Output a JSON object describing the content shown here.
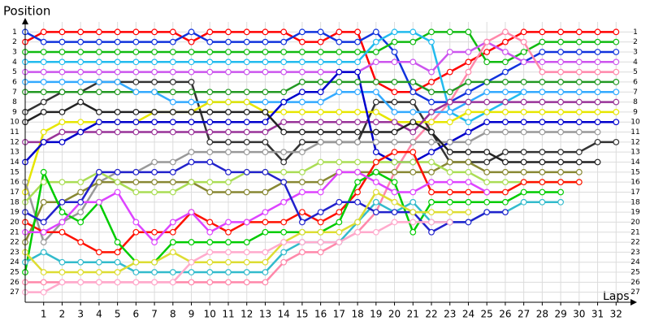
{
  "chart_data": {
    "type": "line",
    "y_title": "Position",
    "x_title": "Laps",
    "x": [
      0,
      1,
      2,
      3,
      4,
      5,
      6,
      7,
      8,
      9,
      10,
      11,
      12,
      13,
      14,
      15,
      16,
      17,
      18,
      19,
      20,
      21,
      22,
      23,
      24,
      25,
      26,
      27,
      28,
      29,
      30,
      31,
      32
    ],
    "xlim": [
      0,
      33
    ],
    "xticks": [
      1,
      2,
      3,
      4,
      5,
      6,
      7,
      8,
      9,
      10,
      11,
      12,
      13,
      14,
      15,
      16,
      17,
      18,
      19,
      20,
      21,
      22,
      23,
      24,
      25,
      26,
      27,
      28,
      29,
      30,
      31,
      32
    ],
    "ylim": [
      0,
      28
    ],
    "yticks": [
      1,
      2,
      3,
      4,
      5,
      6,
      7,
      8,
      9,
      10,
      11,
      12,
      13,
      14,
      15,
      16,
      17,
      18,
      19,
      20,
      21,
      22,
      23,
      24,
      25,
      26,
      27
    ],
    "y_inverted": true,
    "grid": true,
    "series": [
      {
        "color": "#ff0000",
        "values": [
          2,
          1,
          1,
          1,
          1,
          1,
          1,
          1,
          1,
          2,
          1,
          1,
          1,
          1,
          1,
          2,
          2,
          1,
          1,
          6,
          7,
          7,
          6,
          5,
          4,
          3,
          2,
          1,
          1,
          1,
          1,
          1,
          1
        ]
      },
      {
        "color": "#1133dd",
        "values": [
          1,
          2,
          2,
          2,
          2,
          2,
          2,
          2,
          2,
          1,
          2,
          2,
          2,
          2,
          2,
          1,
          1,
          2,
          2,
          1,
          3,
          7,
          8,
          8,
          7,
          6,
          5,
          4,
          3,
          3,
          3,
          3,
          3
        ]
      },
      {
        "color": "#11bb11",
        "values": [
          3,
          3,
          3,
          3,
          3,
          3,
          3,
          3,
          3,
          3,
          3,
          3,
          3,
          3,
          3,
          3,
          3,
          3,
          3,
          3,
          2,
          2,
          1,
          1,
          1,
          4,
          4,
          3,
          2,
          2,
          2,
          2,
          2
        ]
      },
      {
        "color": "#22bbee",
        "values": [
          4,
          4,
          4,
          4,
          4,
          4,
          4,
          4,
          4,
          4,
          4,
          4,
          4,
          4,
          4,
          4,
          4,
          4,
          4,
          2,
          1,
          1,
          2,
          9,
          10,
          9,
          8,
          7,
          7,
          7,
          7,
          7,
          7
        ]
      },
      {
        "color": "#cc55ee",
        "values": [
          5,
          5,
          5,
          5,
          5,
          5,
          5,
          5,
          5,
          5,
          5,
          5,
          5,
          5,
          5,
          5,
          5,
          5,
          5,
          4,
          4,
          4,
          5,
          3,
          3,
          2,
          3,
          4,
          4,
          4,
          4,
          4,
          4
        ]
      },
      {
        "color": "#ff88aa",
        "values": [
          26,
          26,
          26,
          26,
          26,
          26,
          26,
          26,
          26,
          26,
          26,
          26,
          26,
          26,
          24,
          23,
          23,
          22,
          21,
          19,
          15,
          12,
          10,
          8,
          5,
          2,
          1,
          2,
          5,
          5,
          5,
          5,
          5
        ]
      },
      {
        "color": "#333333",
        "values": [
          9,
          8,
          7,
          7,
          6,
          6,
          6,
          6,
          6,
          6,
          12,
          12,
          12,
          12,
          14,
          12,
          12,
          12,
          12,
          8,
          8,
          8,
          11,
          14,
          14,
          14,
          13,
          13,
          13,
          13,
          13,
          12,
          12
        ]
      },
      {
        "color": "#229922",
        "values": [
          7,
          7,
          7,
          7,
          7,
          7,
          7,
          7,
          7,
          7,
          7,
          7,
          7,
          7,
          7,
          6,
          6,
          6,
          6,
          6,
          6,
          6,
          7,
          7,
          6,
          6,
          6,
          6,
          6,
          6,
          6,
          6,
          6
        ]
      },
      {
        "color": "#33aaff",
        "values": [
          6,
          6,
          6,
          6,
          6,
          6,
          7,
          7,
          8,
          8,
          8,
          8,
          8,
          8,
          8,
          8,
          8,
          7,
          7,
          7,
          9,
          9,
          9,
          9,
          8,
          7,
          7,
          7,
          7,
          7,
          7,
          7,
          7
        ]
      },
      {
        "color": "#e6e600",
        "values": [
          17,
          11,
          10,
          10,
          10,
          10,
          10,
          9,
          9,
          9,
          8,
          8,
          8,
          9,
          9,
          9,
          9,
          9,
          9,
          9,
          10,
          10,
          10,
          10,
          9,
          9,
          9,
          9,
          9,
          9,
          9,
          9,
          9
        ]
      },
      {
        "color": "#993399",
        "values": [
          12,
          12,
          11,
          11,
          11,
          11,
          11,
          11,
          11,
          11,
          11,
          11,
          11,
          11,
          10,
          10,
          10,
          10,
          10,
          10,
          10,
          11,
          9,
          8,
          8,
          8,
          8,
          8,
          8,
          8,
          8,
          8,
          8
        ]
      },
      {
        "color": "#0000cc",
        "values": [
          14,
          12,
          12,
          11,
          10,
          10,
          10,
          10,
          10,
          10,
          10,
          10,
          10,
          10,
          8,
          7,
          7,
          5,
          5,
          13,
          14,
          14,
          13,
          12,
          11,
          10,
          10,
          10,
          10,
          10,
          10,
          10,
          10
        ]
      },
      {
        "color": "#999999",
        "values": [
          16,
          22,
          20,
          19,
          16,
          15,
          15,
          14,
          14,
          13,
          13,
          13,
          13,
          13,
          13,
          13,
          12,
          12,
          12,
          12,
          12,
          12,
          12,
          12,
          12,
          11,
          11,
          11,
          11,
          11,
          11,
          11,
          null
        ]
      },
      {
        "color": "#888833",
        "values": [
          22,
          18,
          18,
          17,
          16,
          16,
          16,
          16,
          16,
          16,
          17,
          17,
          17,
          17,
          16,
          16,
          16,
          15,
          15,
          15,
          15,
          15,
          15,
          14,
          14,
          15,
          15,
          15,
          15,
          15,
          15,
          null,
          null
        ]
      },
      {
        "color": "#aadd55",
        "values": [
          18,
          16,
          16,
          16,
          15,
          16,
          17,
          17,
          17,
          16,
          16,
          16,
          15,
          15,
          15,
          15,
          14,
          14,
          14,
          14,
          14,
          14,
          14,
          15,
          15,
          16,
          16,
          16,
          16,
          16,
          16,
          null,
          null
        ]
      },
      {
        "color": "#ff1100",
        "values": [
          20,
          21,
          21,
          22,
          23,
          23,
          21,
          21,
          21,
          19,
          20,
          21,
          20,
          20,
          20,
          19,
          20,
          19,
          17,
          14,
          13,
          13,
          17,
          17,
          17,
          17,
          17,
          16,
          16,
          16,
          16,
          null,
          null
        ]
      },
      {
        "color": "#00cc00",
        "values": [
          25,
          15,
          19,
          20,
          18,
          22,
          24,
          24,
          22,
          22,
          22,
          22,
          22,
          21,
          21,
          21,
          21,
          20,
          16,
          15,
          16,
          21,
          18,
          18,
          18,
          18,
          18,
          17,
          17,
          17,
          null,
          null,
          null
        ]
      },
      {
        "color": "#dd44ff",
        "values": [
          21,
          21,
          20,
          18,
          18,
          17,
          20,
          22,
          20,
          19,
          21,
          20,
          20,
          19,
          18,
          17,
          17,
          15,
          15,
          16,
          17,
          17,
          16,
          16,
          16,
          17,
          null,
          null,
          null,
          null,
          null,
          null,
          null
        ]
      },
      {
        "color": "#33bbcc",
        "values": [
          24,
          23,
          24,
          24,
          24,
          24,
          25,
          25,
          25,
          25,
          25,
          25,
          25,
          25,
          23,
          22,
          22,
          22,
          20,
          18,
          19,
          18,
          20,
          20,
          20,
          19,
          19,
          18,
          18,
          18,
          null,
          null,
          null
        ]
      },
      {
        "color": "#2222cc",
        "values": [
          19,
          20,
          18,
          18,
          15,
          15,
          15,
          15,
          15,
          14,
          14,
          15,
          15,
          15,
          16,
          20,
          19,
          18,
          18,
          19,
          19,
          19,
          21,
          20,
          20,
          19,
          19,
          null,
          null,
          null,
          null,
          null,
          null
        ]
      },
      {
        "color": "#222222",
        "values": [
          10,
          9,
          9,
          8,
          9,
          9,
          9,
          9,
          9,
          9,
          9,
          9,
          9,
          9,
          11,
          11,
          11,
          11,
          11,
          11,
          11,
          10,
          11,
          13,
          13,
          13,
          14,
          14,
          14,
          14,
          14,
          14,
          null
        ]
      },
      {
        "color": "#dddd33",
        "values": [
          23,
          25,
          25,
          25,
          25,
          25,
          24,
          24,
          23,
          24,
          24,
          24,
          24,
          24,
          22,
          21,
          21,
          21,
          20,
          17,
          18,
          19,
          19,
          19,
          19,
          null,
          null,
          null,
          null,
          null,
          null,
          null,
          null
        ]
      },
      {
        "color": "#ffaacc",
        "values": [
          27,
          27,
          26,
          26,
          26,
          26,
          26,
          26,
          26,
          24,
          23,
          23,
          23,
          23,
          22,
          22,
          22,
          22,
          21,
          21,
          20,
          20,
          20,
          20,
          null,
          null,
          null,
          null,
          null,
          null,
          null,
          null,
          null
        ]
      }
    ]
  }
}
